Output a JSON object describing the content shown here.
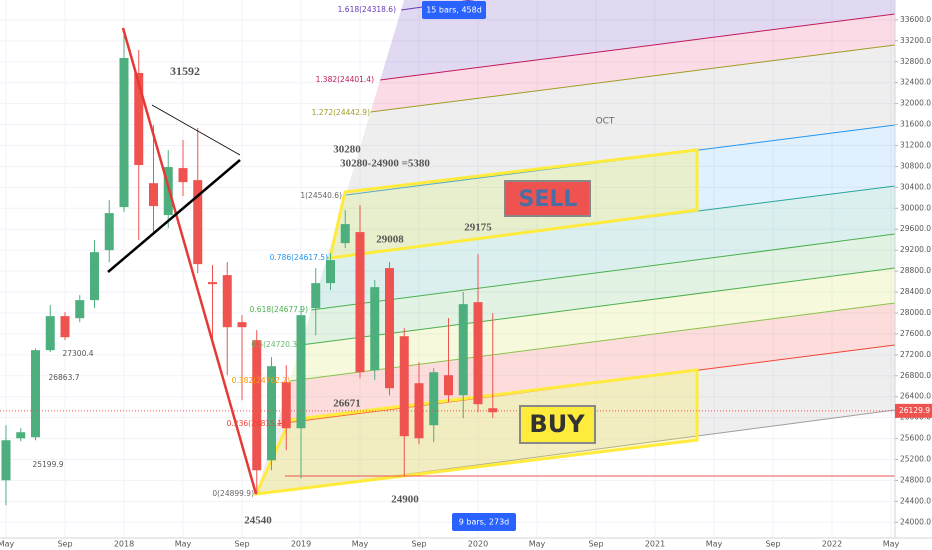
{
  "chart_data": {
    "type": "candlestick",
    "categories": [
      "May",
      null,
      null,
      null,
      "Sep",
      null,
      null,
      null,
      "2018",
      null,
      null,
      null,
      "May",
      null,
      null,
      null,
      "Sep",
      null,
      null,
      null,
      "2019",
      null,
      null,
      null,
      "May",
      null,
      null,
      null,
      "Sep",
      null,
      null,
      null,
      "2020",
      null,
      null,
      null,
      "May",
      null,
      null,
      null,
      "Sep",
      null,
      null,
      null,
      "2021",
      null,
      null,
      null,
      "May",
      null,
      null,
      null,
      "Sep",
      null,
      null,
      null,
      "2022",
      null,
      null,
      null,
      "May"
    ],
    "open": [
      24803,
      25606,
      25625,
      27289,
      27939,
      27900,
      28245,
      29200,
      30023,
      32586,
      30480,
      29870,
      30768,
      30538,
      28589,
      28723,
      27824,
      27480,
      25185,
      26677,
      25797,
      28092,
      28570,
      29334,
      29545,
      26906,
      28857,
      27556,
      26658,
      25855,
      26811,
      26428,
      28206,
      26180,
      null,
      null,
      null,
      null,
      null,
      null,
      null,
      null,
      null,
      null,
      null,
      null,
      null,
      null,
      null,
      null,
      null,
      null,
      null,
      null,
      null,
      null,
      null,
      null,
      null,
      null,
      null
    ],
    "high": [
      25855,
      25797,
      27320,
      28149,
      28015,
      28340,
      29392,
      30156,
      33407,
      33025,
      31590,
      31113,
      31304,
      31533,
      28914,
      28971,
      27958,
      27671,
      27155,
      27002,
      28130,
      28857,
      29143,
      29966,
      30061,
      28627,
      28971,
      27709,
      27059,
      26945,
      27901,
      28398,
      29124,
      27996,
      null,
      null,
      null,
      null,
      null,
      null,
      null,
      null,
      null,
      null,
      null,
      null,
      null,
      null,
      null,
      null,
      null,
      null,
      null,
      null,
      null,
      null,
      null,
      null,
      null,
      null,
      null
    ],
    "low": [
      24325,
      25549,
      25568,
      27250,
      27480,
      27824,
      28092,
      28971,
      29927,
      29392,
      29488,
      29621,
      30233,
      28761,
      27384,
      26811,
      26333,
      24535,
      24994,
      25377,
      24841,
      27575,
      28436,
      29239,
      26753,
      26715,
      26428,
      24880,
      25491,
      25530,
      26295,
      25989,
      26103,
      25989,
      null,
      null,
      null,
      null,
      null,
      null,
      null,
      null,
      null,
      null,
      null,
      null,
      null,
      null,
      null,
      null,
      null,
      null,
      null,
      null,
      null,
      null,
      null,
      null,
      null,
      null,
      null
    ],
    "close": [
      25568,
      25721,
      27289,
      27939,
      27537,
      28245,
      29162,
      29908,
      32872,
      30826,
      30042,
      30788,
      30500,
      28933,
      28551,
      27728,
      27728,
      24994,
      26983,
      25797,
      27958,
      28570,
      29010,
      29698,
      26868,
      28493,
      26562,
      25645,
      25606,
      26868,
      26428,
      28168,
      26256,
      26103,
      null,
      null,
      null,
      null,
      null,
      null,
      null,
      null,
      null,
      null,
      null,
      null,
      null,
      null,
      null,
      null,
      null,
      null,
      null,
      null,
      null,
      null,
      null,
      null,
      null,
      null,
      null
    ],
    "colors": {
      "up": "#4caf7d",
      "down": "#ef5350"
    },
    "ylim": [
      23700,
      33980
    ],
    "yticks": [
      {
        "value": 24000,
        "label": "24000.0"
      },
      {
        "value": 24400,
        "label": "24400.0"
      },
      {
        "value": 24800,
        "label": "24800.0"
      },
      {
        "value": 25200,
        "label": "25200.0"
      },
      {
        "value": 25600,
        "label": "25600.0"
      },
      {
        "value": 26000,
        "label": "26000.0"
      },
      {
        "value": 26400,
        "label": "26400.0"
      },
      {
        "value": 26800,
        "label": "26800.0"
      },
      {
        "value": 27200,
        "label": "27200.0"
      },
      {
        "value": 27600,
        "label": "27600.0"
      },
      {
        "value": 28000,
        "label": "28000.0"
      },
      {
        "value": 28400,
        "label": "28400.0"
      },
      {
        "value": 28800,
        "label": "28800.0"
      },
      {
        "value": 29200,
        "label": "29200.0"
      },
      {
        "value": 29600,
        "label": "29600.0"
      },
      {
        "value": 30000,
        "label": "30000.0"
      },
      {
        "value": 30400,
        "label": "30400.0"
      },
      {
        "value": 30800,
        "label": "30800.0"
      },
      {
        "value": 31200,
        "label": "31200.0"
      },
      {
        "value": 31600,
        "label": "31600.0"
      },
      {
        "value": 32000,
        "label": "32000.0"
      },
      {
        "value": 32400,
        "label": "32400.0"
      },
      {
        "value": 32800,
        "label": "32800.0"
      },
      {
        "value": 33200,
        "label": "33200.0"
      },
      {
        "value": 33600,
        "label": "33600.0"
      }
    ],
    "grid": true,
    "current_price": 26129.9,
    "annotations": [
      "31592",
      "30280",
      "30280-24900 =5380",
      "29008",
      "29175",
      "26671",
      "24900",
      "24540",
      "OCT",
      "27300.4",
      "26863.7",
      "25199.9",
      "1.618(24318.6)",
      "1.382(24401.4)",
      "1.272(24442.9)",
      "1(24540.6)",
      "0.786(24617.5)",
      "0.618(24677.9)",
      "0.5(24720.3)",
      "0.382(24762.7)",
      "0.236(24815.1)",
      "0(24899.9)",
      "SELL",
      "BUY",
      "15 bars, 458d",
      "9 bars, 273d"
    ]
  }
}
